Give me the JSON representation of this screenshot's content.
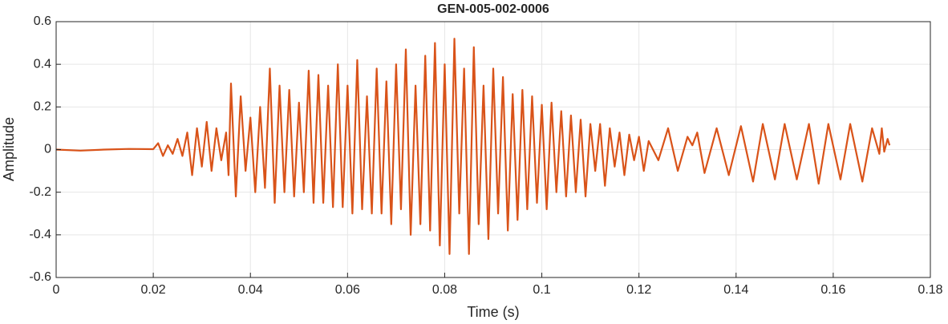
{
  "chart_data": {
    "type": "line",
    "title": "GEN-005-002-0006",
    "xlabel": "Time (s)",
    "ylabel": "Amplitude",
    "xlim": [
      0,
      0.18
    ],
    "xticks": [
      0,
      0.02,
      0.04,
      0.06,
      0.08,
      0.1,
      0.12,
      0.14,
      0.16,
      0.18
    ],
    "ylim": [
      -0.6,
      0.6
    ],
    "yticks": [
      -0.6,
      -0.4,
      -0.2,
      0,
      0.2,
      0.4,
      0.6
    ],
    "grid": true,
    "series": [
      {
        "name": "Amplitude",
        "color": "#d95319",
        "x": [
          0,
          0.005,
          0.01,
          0.015,
          0.02,
          0.021,
          0.022,
          0.023,
          0.024,
          0.025,
          0.026,
          0.027,
          0.028,
          0.029,
          0.03,
          0.031,
          0.032,
          0.033,
          0.034,
          0.035,
          0.0355,
          0.036,
          0.037,
          0.038,
          0.039,
          0.04,
          0.041,
          0.042,
          0.043,
          0.044,
          0.045,
          0.046,
          0.047,
          0.048,
          0.049,
          0.05,
          0.051,
          0.052,
          0.053,
          0.054,
          0.055,
          0.056,
          0.057,
          0.058,
          0.059,
          0.06,
          0.061,
          0.062,
          0.063,
          0.064,
          0.065,
          0.066,
          0.067,
          0.068,
          0.069,
          0.07,
          0.071,
          0.072,
          0.073,
          0.074,
          0.075,
          0.076,
          0.077,
          0.078,
          0.079,
          0.08,
          0.081,
          0.082,
          0.083,
          0.084,
          0.085,
          0.086,
          0.087,
          0.088,
          0.089,
          0.09,
          0.091,
          0.092,
          0.093,
          0.094,
          0.095,
          0.096,
          0.097,
          0.098,
          0.099,
          0.1,
          0.101,
          0.102,
          0.103,
          0.104,
          0.105,
          0.106,
          0.107,
          0.108,
          0.109,
          0.11,
          0.111,
          0.112,
          0.113,
          0.114,
          0.115,
          0.116,
          0.117,
          0.118,
          0.119,
          0.12,
          0.121,
          0.122,
          0.124,
          0.126,
          0.128,
          0.13,
          0.131,
          0.132,
          0.1335,
          0.136,
          0.1385,
          0.141,
          0.1435,
          0.1455,
          0.148,
          0.15,
          0.1525,
          0.155,
          0.157,
          0.159,
          0.1615,
          0.1635,
          0.166,
          0.168,
          0.1695,
          0.17,
          0.1705,
          0.1712,
          0.1716
        ],
        "values": [
          0,
          -0.005,
          0,
          0.003,
          0.002,
          0.03,
          -0.03,
          0.02,
          -0.02,
          0.05,
          -0.03,
          0.08,
          -0.12,
          0.1,
          -0.08,
          0.13,
          -0.1,
          0.1,
          -0.05,
          0.08,
          -0.12,
          0.31,
          -0.22,
          0.25,
          -0.1,
          0.15,
          -0.2,
          0.2,
          -0.18,
          0.38,
          -0.25,
          0.3,
          -0.2,
          0.28,
          -0.22,
          0.22,
          -0.2,
          0.37,
          -0.25,
          0.35,
          -0.25,
          0.3,
          -0.27,
          0.4,
          -0.27,
          0.3,
          -0.3,
          0.42,
          -0.28,
          0.25,
          -0.3,
          0.38,
          -0.3,
          0.32,
          -0.35,
          0.4,
          -0.28,
          0.47,
          -0.4,
          0.3,
          -0.35,
          0.44,
          -0.38,
          0.5,
          -0.45,
          0.4,
          -0.49,
          0.52,
          -0.3,
          0.38,
          -0.49,
          0.48,
          -0.35,
          0.3,
          -0.42,
          0.38,
          -0.3,
          0.34,
          -0.38,
          0.26,
          -0.33,
          0.28,
          -0.28,
          0.25,
          -0.25,
          0.21,
          -0.28,
          0.22,
          -0.2,
          0.18,
          -0.22,
          0.16,
          -0.2,
          0.14,
          -0.22,
          0.12,
          -0.1,
          0.12,
          -0.17,
          0.1,
          -0.08,
          0.08,
          -0.12,
          0.07,
          -0.05,
          0.06,
          -0.1,
          0.04,
          -0.05,
          0.1,
          -0.1,
          0.06,
          0.02,
          0.08,
          -0.11,
          0.1,
          -0.12,
          0.11,
          -0.15,
          0.12,
          -0.14,
          0.12,
          -0.14,
          0.12,
          -0.16,
          0.12,
          -0.14,
          0.12,
          -0.15,
          0.1,
          -0.02,
          0.1,
          -0.01,
          0.05,
          0.02
        ]
      }
    ]
  }
}
